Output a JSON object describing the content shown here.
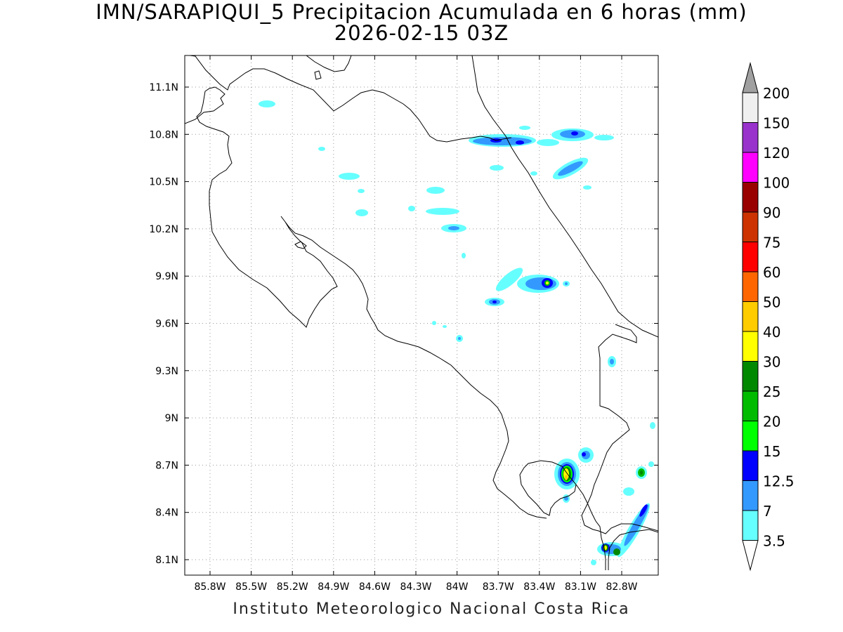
{
  "title": {
    "line1": "IMN/SARAPIQUI_5 Precipitacion Acumulada en 6 horas (mm)",
    "line2": "2026-02-15 03Z"
  },
  "footer": "Instituto Meteorologico Nacional Costa Rica",
  "map": {
    "lon_ticks": [
      "85.8W",
      "85.5W",
      "85.2W",
      "84.9W",
      "84.6W",
      "84.3W",
      "84W",
      "83.7W",
      "83.4W",
      "83.1W",
      "82.8W"
    ],
    "lat_ticks": [
      "11.1N",
      "10.8N",
      "10.5N",
      "10.2N",
      "9.9N",
      "9.6N",
      "9.3N",
      "9N",
      "8.7N",
      "8.4N",
      "8.1N"
    ],
    "grid": true,
    "grid_style": "dotted"
  },
  "colorbar": {
    "levels": [
      "200",
      "150",
      "120",
      "100",
      "90",
      "75",
      "60",
      "50",
      "40",
      "30",
      "25",
      "20",
      "15",
      "12.5",
      "7",
      "3.5"
    ],
    "colors": [
      "#a0a0a0",
      "#f0f0f0",
      "#9932cc",
      "#ff00ff",
      "#990000",
      "#cc3300",
      "#ff0000",
      "#ff6600",
      "#ffcc00",
      "#ffff00",
      "#008800",
      "#00bb00",
      "#00ff00",
      "#0000ff",
      "#3399ff",
      "#66ffff",
      "#ffffff"
    ]
  },
  "legend_colors": {
    "cyan_3_5": "#66ffff",
    "lightblue_7": "#3399ff",
    "blue_12_5": "#0000ff",
    "green_15": "#00ff00",
    "green_20": "#00bb00",
    "green_25": "#008800",
    "yellow_30": "#ffff00",
    "gold_40": "#ffcc00"
  }
}
